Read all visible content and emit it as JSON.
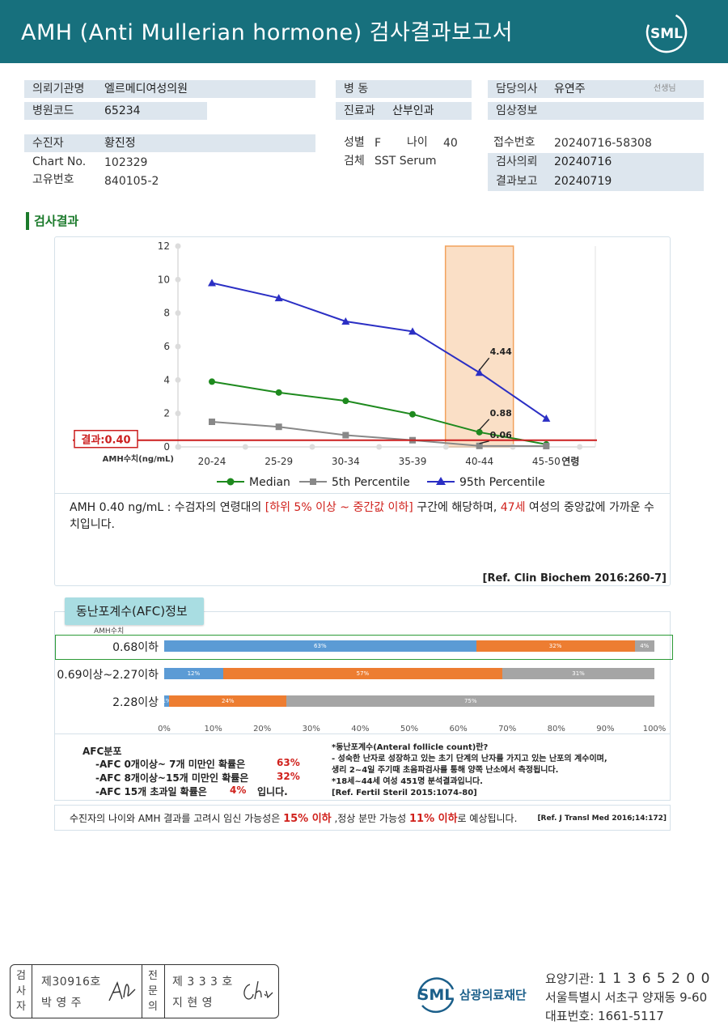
{
  "header": {
    "title": "AMH (Anti Mullerian hormone) 검사결과보고서",
    "logo_text": "SML"
  },
  "patient": {
    "institution_label": "의뢰기관명",
    "institution": "엘르메디여성의원",
    "hospital_code_label": "병원코드",
    "hospital_code": "65234",
    "ward_label": "병 동",
    "ward": "",
    "department_label": "진료과",
    "department": "산부인과",
    "doctor_label": "담당의사",
    "doctor": "유연주",
    "doctor_suffix": "선생님",
    "clinical_info_label": "임상정보",
    "clinical_info": "",
    "name_label": "수진자",
    "name": "황진정",
    "chart_no_label": "Chart No.",
    "chart_no": "102329",
    "unique_no_label": "고유번호",
    "unique_no": "840105-2",
    "sex_label": "성별",
    "sex": "F",
    "age_label": "나이",
    "age": "40",
    "specimen_label": "검체",
    "specimen": "SST Serum",
    "receipt_no_label": "접수번호",
    "receipt_no": "20240716-58308",
    "request_label": "검사의뢰",
    "request_date": "20240716",
    "report_label": "결과보고",
    "report_date": "20240719"
  },
  "section_title": "검사결과",
  "chart_data": {
    "type": "line",
    "categories": [
      "20-24",
      "25-29",
      "30-34",
      "35-39",
      "40-44",
      "45-50"
    ],
    "x_axis_suffix": "연령",
    "y_axis_unit_label": "AMH수치(ng/mL)",
    "ylim": [
      0,
      12
    ],
    "yticks": [
      0,
      2,
      4,
      6,
      8,
      10,
      12
    ],
    "grid": false,
    "series": [
      {
        "name": "Median",
        "color": "#1e8a1e",
        "marker": "circle",
        "values": [
          3.9,
          3.25,
          2.75,
          1.95,
          0.88,
          0.15
        ]
      },
      {
        "name": "5th Percentile",
        "color": "#888888",
        "marker": "square",
        "values": [
          1.5,
          1.2,
          0.7,
          0.4,
          0.06,
          0.05
        ]
      },
      {
        "name": "95th Percentile",
        "color": "#2b2fc4",
        "marker": "triangle",
        "values": [
          9.8,
          8.9,
          7.5,
          6.9,
          4.44,
          1.7
        ]
      }
    ],
    "annotations": [
      {
        "text": "4.44",
        "category": "40-44",
        "value": 4.44
      },
      {
        "text": "0.88",
        "category": "40-44",
        "value": 0.88
      },
      {
        "text": "0.06",
        "category": "40-44",
        "value": 0.06
      }
    ],
    "highlight_category": "40-44",
    "highlight_color": "#f2a25c",
    "result_line": {
      "label": "결과:0.40",
      "value": 0.4,
      "color": "#cc1f1f"
    }
  },
  "interpretation": {
    "part1": "AMH  0.40 ng/mL : 수검자의 연령대의 ",
    "range": "[하위 5% 이상 ~ 중간값 이하]",
    "part2": " 구간에 해당하며, ",
    "age": "47세",
    "part3": " 여성의 중앙값에 가까운 수치입니다.",
    "reference": "[Ref. Clin Biochem 2016:260-7]"
  },
  "afc": {
    "tab_title": "동난포계수(AFC)정보",
    "amh_label": "AMH수치",
    "colors": {
      "blue": "#5b9bd5",
      "orange": "#ed7d31",
      "gray": "#a5a5a5"
    },
    "rows": [
      {
        "label": "0.68이하",
        "values": [
          63,
          32,
          4
        ],
        "labels": [
          "63%",
          "32%",
          "4%"
        ]
      },
      {
        "label": "0.69이상~2.27이하",
        "values": [
          12,
          57,
          31
        ],
        "labels": [
          "12%",
          "57%",
          "31%"
        ]
      },
      {
        "label": "2.28이상",
        "values": [
          1,
          24,
          75
        ],
        "labels": [
          "1%",
          "24%",
          "75%"
        ]
      }
    ],
    "x_ticks": [
      "0%",
      "10%",
      "20%",
      "30%",
      "40%",
      "50%",
      "60%",
      "70%",
      "80%",
      "90%",
      "100%"
    ],
    "dist_title": "AFC분포",
    "dist": [
      {
        "text": "-AFC  0개이상~ 7개 미만인 확률은",
        "pct": "63%",
        "after": ""
      },
      {
        "text": "-AFC  8개이상~15개 미만인 확률은",
        "pct": "32%",
        "after": ""
      },
      {
        "text": "-AFC  15개 초과일 확률은",
        "pct": "4%",
        "after": "입니다."
      }
    ],
    "definition": [
      "*동난포계수(Anteral  follicle  count)란?",
      "- 성숙한 난자로 성장하고 있는 초기 단계의 난자를 가지고 있는 난포의 계수이며,",
      "   생리 2~4일 주기때 초음파검사를 통해 양쪽 난소에서 측정됩니다.",
      "*18세~44세 여성 451명 분석결과입니다.",
      "[Ref. Fertil Steril 2015:1074-80]"
    ]
  },
  "summary": {
    "part1": "수진자의  나이와 AMH 결과를 고려시 임신 가능성은 ",
    "pregnancy": "15% 이하",
    "part2": " ,정상 분만 가능성 ",
    "birth": "11% 이하",
    "part3": "로 예상됩니다.",
    "reference": "[Ref. J Transl Med 2016;14:172]"
  },
  "signatures": {
    "examiner_label": "검사자",
    "examiner_no": "제30916호",
    "examiner_name": "박 영 주",
    "specialist_label": "전문의",
    "specialist_no": "제 3 3 3 호",
    "specialist_name": "지 현 영"
  },
  "organization": {
    "logo_text": "SML",
    "name": "삼광의료재단",
    "code_label": "요양기관: ",
    "code": "1 1 3 6 5 2 0 0",
    "address": "서울특별시 서초구 양재동 9-60",
    "phone_label": "대표번호: ",
    "phone": "1661-5117"
  }
}
